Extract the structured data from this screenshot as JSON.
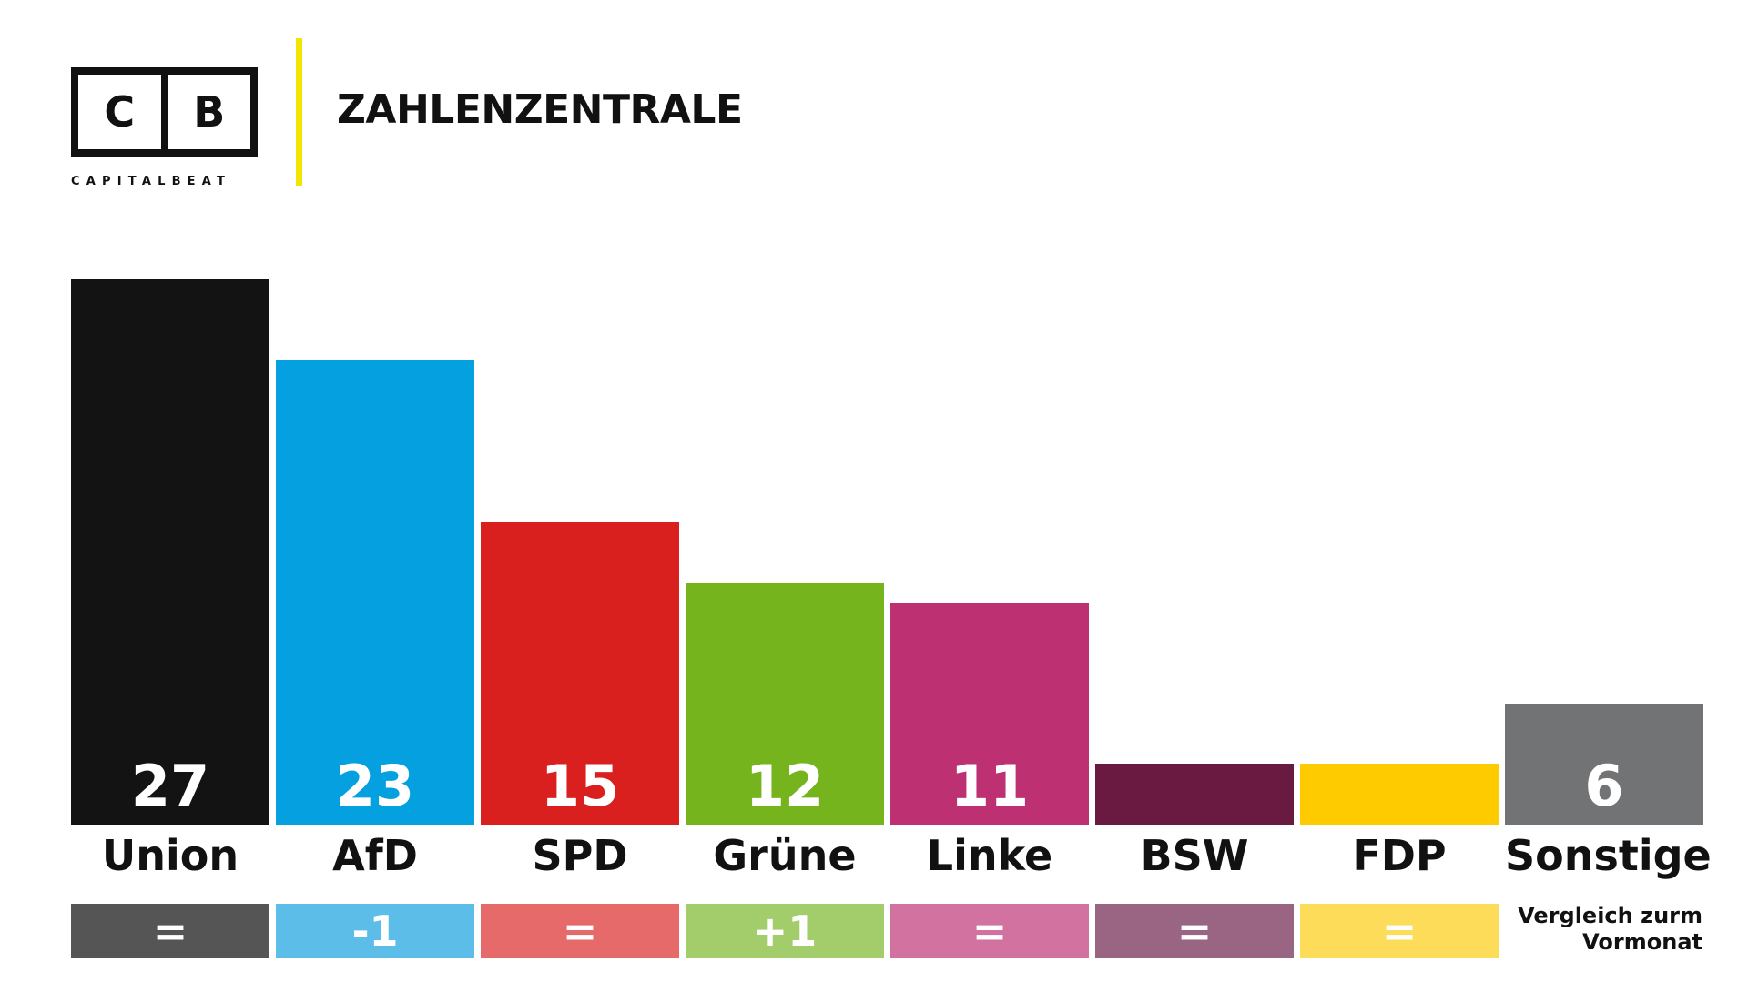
{
  "header": {
    "logo_left": "C",
    "logo_right": "B",
    "logo_wordmark": "CAPITALBEAT",
    "title": "ZAHLENZENTRALE"
  },
  "chart_data": {
    "type": "bar",
    "categories": [
      "Union",
      "AfD",
      "SPD",
      "Grüne",
      "Linke",
      "BSW",
      "FDP",
      "Sonstige"
    ],
    "values": [
      27,
      23,
      15,
      12,
      11,
      3,
      3,
      6
    ],
    "value_labels": [
      "27",
      "23",
      "15",
      "12",
      "11",
      "",
      "",
      "6"
    ],
    "colors": [
      "#131313",
      "#04a0e0",
      "#d9201f",
      "#75b41c",
      "#bd3173",
      "#6a1941",
      "#fdcb00",
      "#727374"
    ],
    "changes": [
      "=",
      "-1",
      "=",
      "+1",
      "=",
      "=",
      "=",
      null
    ],
    "change_colors": [
      "#555555",
      "#5cbde9",
      "#e66a6a",
      "#a3cc6a",
      "#d172a0",
      "#9a6583",
      "#fddc5a",
      null
    ],
    "change_note": "Vergleich zurm Vormonat"
  }
}
